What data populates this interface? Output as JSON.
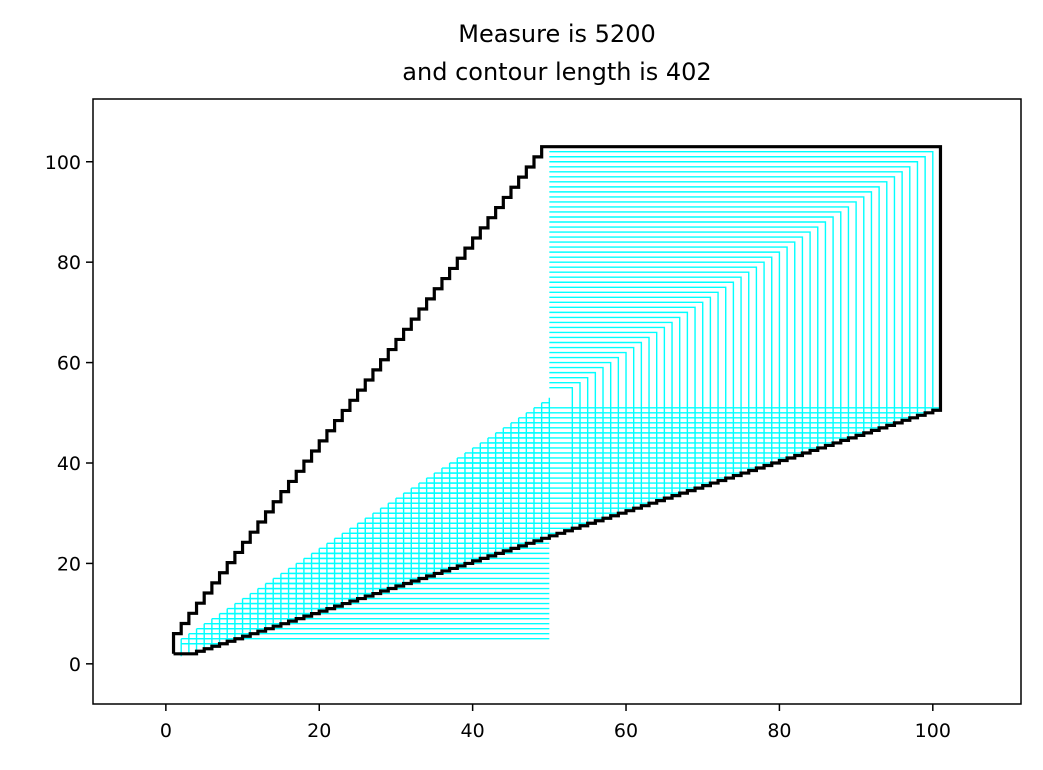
{
  "chart_data": {
    "type": "line",
    "title_line1": "Measure is 5200",
    "title_line2": "and contour length is 402",
    "xlabel": "",
    "ylabel": "",
    "xlim": [
      -9.5,
      111.5
    ],
    "ylim": [
      -8,
      112.5
    ],
    "xticks": [
      0,
      20,
      40,
      60,
      80,
      100
    ],
    "yticks": [
      0,
      20,
      40,
      60,
      80,
      100
    ],
    "grid": false,
    "series": [
      {
        "role": "contour",
        "color": "#000000",
        "points": [
          [
            1,
            2
          ],
          [
            1,
            4
          ],
          [
            50,
            103
          ],
          [
            101,
            103
          ],
          [
            101,
            51
          ],
          [
            3,
            2
          ],
          [
            1,
            2
          ]
        ]
      },
      {
        "role": "fill_grid",
        "color": "#00ffff",
        "points": []
      }
    ]
  }
}
